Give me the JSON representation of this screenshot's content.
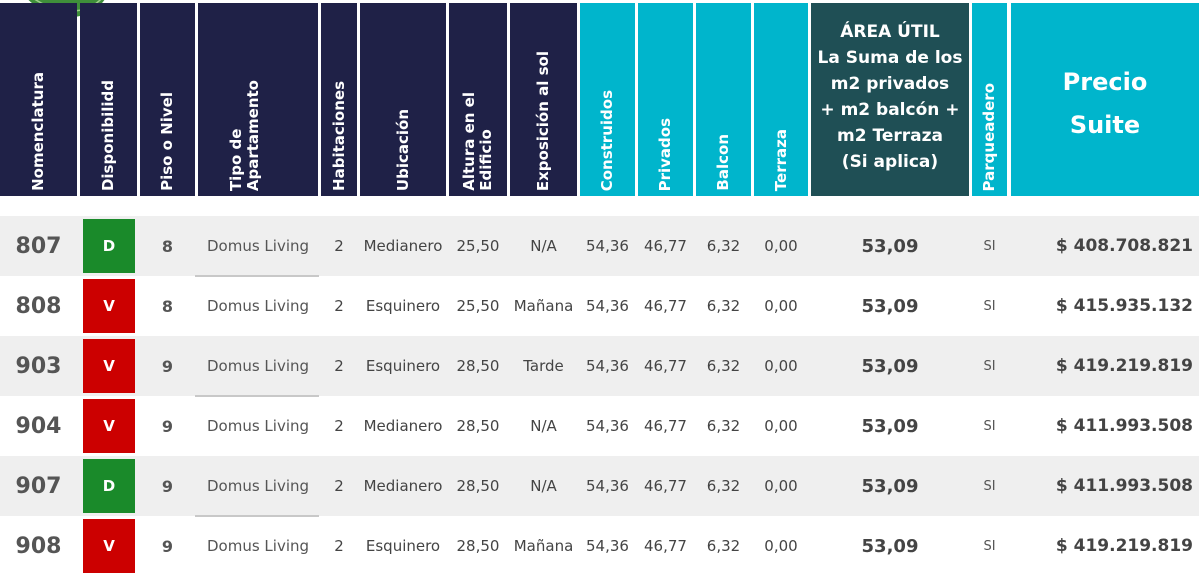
{
  "headers": {
    "nomenclatura": "Nomenclatura",
    "disponibilidad": "Disponibilidd",
    "piso": "Piso o Nivel",
    "tipo_l1": "Tipo de",
    "tipo_l2": "Apartamento",
    "habitaciones": "Habitaciones",
    "ubicacion": "Ubicación",
    "altura_l1": "Altura en el",
    "altura_l2": "Edificio",
    "exposicion": "Exposición al sol",
    "construidos": "Construidos",
    "privados": "Privados",
    "balcon": "Balcon",
    "terraza": "Terraza",
    "area_util": [
      "ÁREA ÚTIL",
      "La Suma de los",
      "m2 privados",
      "+ m2 balcón +",
      "m2 Terraza",
      "(Si aplica)"
    ],
    "parqueadero": "Parqueadero",
    "precio_l1": "Precio",
    "precio_l2": "Suite"
  },
  "colors": {
    "navy": "#1f2147",
    "cyan": "#00b5cc",
    "teal": "#1f4f55",
    "disponible": "#1a8a2a",
    "vendido": "#cc0000"
  },
  "rows": [
    {
      "nom": "807",
      "disp": "D",
      "piso": "8",
      "tipo": "Domus Living",
      "hab": "2",
      "ubic": "Medianero",
      "altura": "25,50",
      "expo": "N/A",
      "constr": "54,36",
      "priv": "46,77",
      "balcon": "6,32",
      "terraza": "0,00",
      "area": "53,09",
      "park": "SI",
      "precio": "$ 408.708.821"
    },
    {
      "nom": "808",
      "disp": "V",
      "piso": "8",
      "tipo": "Domus Living",
      "hab": "2",
      "ubic": "Esquinero",
      "altura": "25,50",
      "expo": "Mañana",
      "constr": "54,36",
      "priv": "46,77",
      "balcon": "6,32",
      "terraza": "0,00",
      "area": "53,09",
      "park": "SI",
      "precio": "$ 415.935.132"
    },
    {
      "nom": "903",
      "disp": "V",
      "piso": "9",
      "tipo": "Domus Living",
      "hab": "2",
      "ubic": "Esquinero",
      "altura": "28,50",
      "expo": "Tarde",
      "constr": "54,36",
      "priv": "46,77",
      "balcon": "6,32",
      "terraza": "0,00",
      "area": "53,09",
      "park": "SI",
      "precio": "$ 419.219.819"
    },
    {
      "nom": "904",
      "disp": "V",
      "piso": "9",
      "tipo": "Domus Living",
      "hab": "2",
      "ubic": "Medianero",
      "altura": "28,50",
      "expo": "N/A",
      "constr": "54,36",
      "priv": "46,77",
      "balcon": "6,32",
      "terraza": "0,00",
      "area": "53,09",
      "park": "SI",
      "precio": "$ 411.993.508"
    },
    {
      "nom": "907",
      "disp": "D",
      "piso": "9",
      "tipo": "Domus Living",
      "hab": "2",
      "ubic": "Medianero",
      "altura": "28,50",
      "expo": "N/A",
      "constr": "54,36",
      "priv": "46,77",
      "balcon": "6,32",
      "terraza": "0,00",
      "area": "53,09",
      "park": "SI",
      "precio": "$ 411.993.508"
    },
    {
      "nom": "908",
      "disp": "V",
      "piso": "9",
      "tipo": "Domus Living",
      "hab": "2",
      "ubic": "Esquinero",
      "altura": "28,50",
      "expo": "Mañana",
      "constr": "54,36",
      "priv": "46,77",
      "balcon": "6,32",
      "terraza": "0,00",
      "area": "53,09",
      "park": "SI",
      "precio": "$ 419.219.819"
    }
  ]
}
